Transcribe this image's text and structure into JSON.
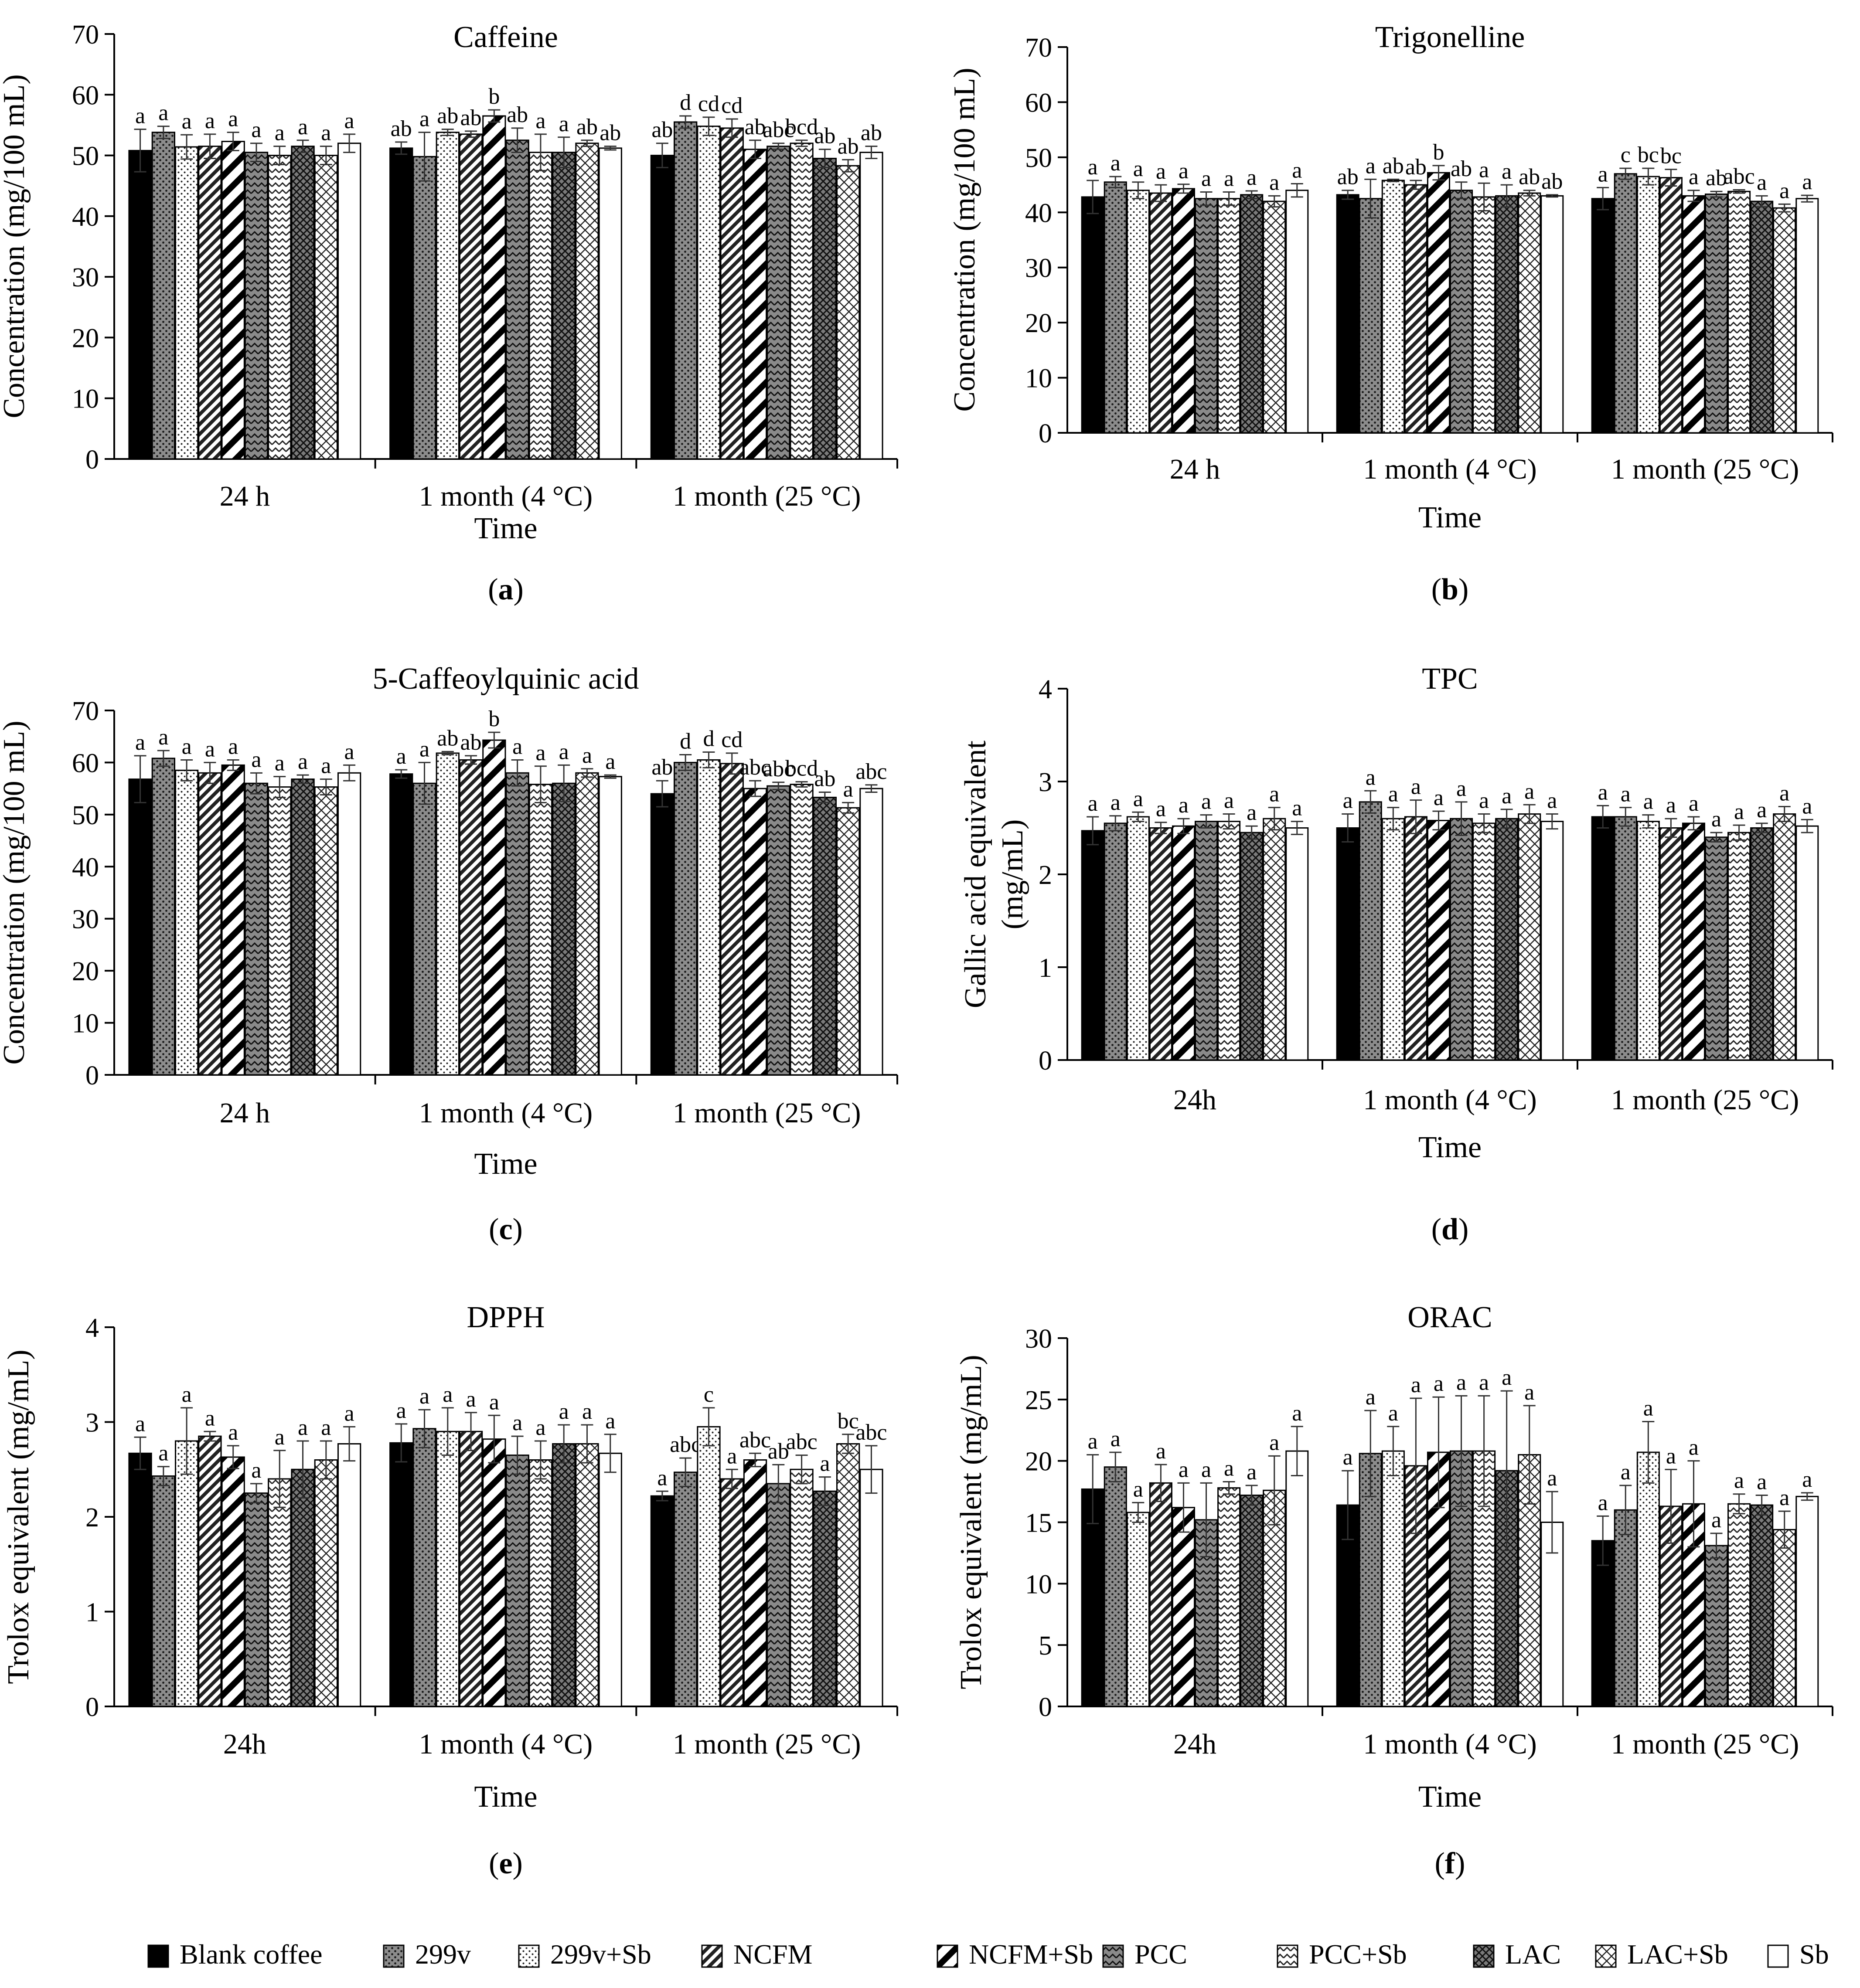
{
  "time_axis_title": "Time",
  "series_names": [
    "Blank coffee",
    "299v",
    "299v+Sb",
    "NCFM",
    "NCFM+Sb",
    "PCC",
    "PCC+Sb",
    "LAC",
    "LAC+Sb",
    "Sb"
  ],
  "legend": {
    "position": "bottom",
    "items": [
      {
        "label": "Blank coffee",
        "pattern": "solid-black"
      },
      {
        "label": "299v",
        "pattern": "dotted-gray"
      },
      {
        "label": "299v+Sb",
        "pattern": "dotted-white"
      },
      {
        "label": "NCFM",
        "pattern": "dense-diagonal-stripes"
      },
      {
        "label": "NCFM+Sb",
        "pattern": "wide-diagonal-stripes"
      },
      {
        "label": "PCC",
        "pattern": "zigzag-gray"
      },
      {
        "label": "PCC+Sb",
        "pattern": "zigzag-white"
      },
      {
        "label": "LAC",
        "pattern": "crosshatch-gray"
      },
      {
        "label": "LAC+Sb",
        "pattern": "crosshatch-white"
      },
      {
        "label": "Sb",
        "pattern": "white"
      }
    ]
  },
  "colors": {
    "axis": "#000000",
    "bar_outline": "#000000",
    "dark_fill": "#808080",
    "black_fill": "#000000"
  },
  "chart_data": [
    {
      "type": "bar",
      "title": "Caffeine",
      "panel_label": "(a)",
      "ylabel": "Concentration (mg/100 mL)",
      "xlabel": "Time",
      "ylim": [
        0,
        70
      ],
      "yticks": [
        0,
        10,
        20,
        30,
        40,
        50,
        60,
        70
      ],
      "categories": [
        "24 h",
        "1 month (4 °C)",
        "1 month (25 °C)"
      ],
      "values": [
        [
          50.8,
          53.8,
          51.4,
          51.5,
          52.3,
          50.5,
          50.0,
          51.5,
          50.0,
          52.0
        ],
        [
          51.2,
          49.8,
          53.8,
          53.5,
          56.5,
          52.5,
          50.5,
          50.5,
          52.0,
          51.2
        ],
        [
          50.0,
          55.5,
          54.8,
          54.5,
          51.0,
          51.5,
          52.0,
          49.5,
          48.3,
          50.5
        ]
      ],
      "errors": [
        [
          3.5,
          1.0,
          2.0,
          2.0,
          1.5,
          1.5,
          1.5,
          1.0,
          1.5,
          1.5
        ],
        [
          1.0,
          4.0,
          0.5,
          0.5,
          1.0,
          2.0,
          3.0,
          2.5,
          0.5,
          0.3
        ],
        [
          2.0,
          1.0,
          1.5,
          1.5,
          1.5,
          0.5,
          0.5,
          1.5,
          1.0,
          1.0
        ]
      ],
      "labels": [
        [
          "a",
          "a",
          "a",
          "a",
          "a",
          "a",
          "a",
          "a",
          "a",
          "a"
        ],
        [
          "ab",
          "a",
          "ab",
          "ab",
          "b",
          "ab",
          "a",
          "a",
          "ab",
          "ab"
        ],
        [
          "ab",
          "d",
          "cd",
          "cd",
          "ab",
          "abc",
          "bcd",
          "ab",
          "ab",
          "ab"
        ]
      ]
    },
    {
      "type": "bar",
      "title": "Trigonelline",
      "panel_label": "(b)",
      "ylabel": "Concentration (mg/100 mL)",
      "xlabel": "Time",
      "ylim": [
        0,
        70
      ],
      "yticks": [
        0,
        10,
        20,
        30,
        40,
        50,
        60,
        70
      ],
      "categories": [
        "24 h",
        "1 month (4 °C)",
        "1 month (25 °C)"
      ],
      "values": [
        [
          42.8,
          45.5,
          44.0,
          43.5,
          44.3,
          42.5,
          42.5,
          43.2,
          42.0,
          44.0
        ],
        [
          43.2,
          42.5,
          45.8,
          45.0,
          47.2,
          44.0,
          42.8,
          43.0,
          43.5,
          43.0
        ],
        [
          42.5,
          47.0,
          46.5,
          46.3,
          43.0,
          43.3,
          43.8,
          42.0,
          40.8,
          42.5
        ]
      ],
      "errors": [
        [
          3.0,
          1.0,
          1.5,
          1.5,
          0.8,
          1.2,
          1.2,
          0.7,
          1.0,
          1.2
        ],
        [
          0.8,
          3.5,
          0.2,
          0.8,
          1.3,
          1.5,
          2.5,
          2.0,
          0.5,
          0.2
        ],
        [
          2.0,
          1.0,
          1.5,
          1.5,
          1.0,
          0.5,
          0.3,
          1.0,
          0.7,
          0.6
        ]
      ],
      "labels": [
        [
          "a",
          "a",
          "a",
          "a",
          "a",
          "a",
          "a",
          "a",
          "a",
          "a"
        ],
        [
          "ab",
          "a",
          "ab",
          "ab",
          "b",
          "ab",
          "a",
          "a",
          "ab",
          "ab"
        ],
        [
          "a",
          "c",
          "bc",
          "bc",
          "a",
          "ab",
          "abc",
          "a",
          "a",
          "a"
        ]
      ]
    },
    {
      "type": "bar",
      "title": "5-Caffeoylquinic acid",
      "panel_label": "(c)",
      "ylabel": "Concentration (mg/100 mL)",
      "xlabel": "Time",
      "ylim": [
        0,
        70
      ],
      "yticks": [
        0,
        10,
        20,
        30,
        40,
        50,
        60,
        70
      ],
      "categories": [
        "24 h",
        "1 month (4 °C)",
        "1 month (25 °C)"
      ],
      "values": [
        [
          56.8,
          60.8,
          58.5,
          58.0,
          59.5,
          56.0,
          55.3,
          56.8,
          55.3,
          58.0
        ],
        [
          57.8,
          56.0,
          61.8,
          60.5,
          64.3,
          58.0,
          55.8,
          56.0,
          58.0,
          57.3
        ],
        [
          54.0,
          60.0,
          60.5,
          59.8,
          55.0,
          55.5,
          55.8,
          53.3,
          51.3,
          55.0
        ]
      ],
      "errors": [
        [
          4.5,
          1.5,
          2.0,
          2.0,
          1.0,
          2.0,
          2.0,
          0.8,
          1.5,
          1.5
        ],
        [
          0.8,
          4.0,
          0.3,
          0.8,
          1.5,
          2.5,
          3.5,
          3.5,
          0.8,
          0.3
        ],
        [
          2.5,
          1.5,
          1.5,
          2.0,
          1.5,
          0.7,
          0.5,
          1.0,
          1.0,
          0.7
        ]
      ],
      "labels": [
        [
          "a",
          "a",
          "a",
          "a",
          "a",
          "a",
          "a",
          "a",
          "a",
          "a"
        ],
        [
          "a",
          "a",
          "ab",
          "ab",
          "b",
          "a",
          "a",
          "a",
          "a",
          "a"
        ],
        [
          "ab",
          "d",
          "d",
          "cd",
          "abc",
          "abc",
          "bcd",
          "ab",
          "a",
          "abc"
        ]
      ]
    },
    {
      "type": "bar",
      "title": "TPC",
      "panel_label": "(d)",
      "ylabel": "Gallic acid equivalent (mg/mL)",
      "xlabel": "Time",
      "ylim": [
        0,
        4
      ],
      "yticks": [
        0,
        1,
        2,
        3,
        4
      ],
      "categories": [
        "24h",
        "1 month (4 °C)",
        "1 month (25 °C)"
      ],
      "values": [
        [
          2.47,
          2.55,
          2.62,
          2.5,
          2.52,
          2.57,
          2.57,
          2.45,
          2.6,
          2.5
        ],
        [
          2.5,
          2.78,
          2.6,
          2.62,
          2.58,
          2.6,
          2.55,
          2.6,
          2.65,
          2.57
        ],
        [
          2.62,
          2.62,
          2.57,
          2.5,
          2.55,
          2.4,
          2.45,
          2.5,
          2.65,
          2.52
        ]
      ],
      "errors": [
        [
          0.15,
          0.08,
          0.05,
          0.06,
          0.08,
          0.07,
          0.08,
          0.07,
          0.12,
          0.07
        ],
        [
          0.15,
          0.12,
          0.12,
          0.18,
          0.1,
          0.18,
          0.1,
          0.1,
          0.1,
          0.08
        ],
        [
          0.12,
          0.1,
          0.07,
          0.1,
          0.07,
          0.05,
          0.08,
          0.05,
          0.08,
          0.07
        ]
      ],
      "labels": [
        [
          "a",
          "a",
          "a",
          "a",
          "a",
          "a",
          "a",
          "a",
          "a",
          "a"
        ],
        [
          "a",
          "a",
          "a",
          "a",
          "a",
          "a",
          "a",
          "a",
          "a",
          "a"
        ],
        [
          "a",
          "a",
          "a",
          "a",
          "a",
          "a",
          "a",
          "a",
          "a",
          "a"
        ]
      ]
    },
    {
      "type": "bar",
      "title": "DPPH",
      "panel_label": "(e)",
      "ylabel": "Trolox equivalent (mg/mL)",
      "xlabel": "Time",
      "ylim": [
        0,
        4
      ],
      "yticks": [
        0,
        1,
        2,
        3,
        4
      ],
      "categories": [
        "24h",
        "1 month (4 °C)",
        "1 month (25 °C)"
      ],
      "values": [
        [
          2.67,
          2.43,
          2.8,
          2.85,
          2.63,
          2.25,
          2.4,
          2.5,
          2.6,
          2.77
        ],
        [
          2.78,
          2.93,
          2.9,
          2.9,
          2.82,
          2.65,
          2.6,
          2.77,
          2.77,
          2.67
        ],
        [
          2.22,
          2.47,
          2.95,
          2.4,
          2.6,
          2.35,
          2.5,
          2.27,
          2.77,
          2.5
        ]
      ],
      "errors": [
        [
          0.17,
          0.1,
          0.35,
          0.05,
          0.12,
          0.1,
          0.3,
          0.3,
          0.2,
          0.18
        ],
        [
          0.2,
          0.2,
          0.25,
          0.2,
          0.25,
          0.2,
          0.2,
          0.2,
          0.2,
          0.2
        ],
        [
          0.05,
          0.15,
          0.2,
          0.1,
          0.07,
          0.2,
          0.15,
          0.15,
          0.1,
          0.25
        ]
      ],
      "labels": [
        [
          "a",
          "a",
          "a",
          "a",
          "a",
          "a",
          "a",
          "a",
          "a",
          "a"
        ],
        [
          "a",
          "a",
          "a",
          "a",
          "a",
          "a",
          "a",
          "a",
          "a",
          "a"
        ],
        [
          "a",
          "abc",
          "c",
          "a",
          "abc",
          "ab",
          "abc",
          "a",
          "bc",
          "abc"
        ]
      ]
    },
    {
      "type": "bar",
      "title": "ORAC",
      "panel_label": "(f)",
      "ylabel": "Trolox equivalent (mg/mL)",
      "xlabel": "Time",
      "ylim": [
        0,
        30
      ],
      "yticks": [
        0,
        5,
        10,
        15,
        20,
        25,
        30
      ],
      "categories": [
        "24h",
        "1 month (4 °C)",
        "1 month (25 °C)"
      ],
      "values": [
        [
          17.7,
          19.5,
          15.8,
          18.2,
          16.2,
          15.2,
          17.8,
          17.2,
          17.6,
          20.8
        ],
        [
          16.4,
          20.6,
          20.8,
          19.6,
          20.7,
          20.8,
          20.8,
          19.2,
          20.5,
          15.0
        ],
        [
          13.5,
          16.0,
          20.7,
          16.3,
          16.5,
          13.1,
          16.5,
          16.4,
          14.4,
          17.1
        ]
      ],
      "errors": [
        [
          2.8,
          1.2,
          0.8,
          1.5,
          2.0,
          3.0,
          0.5,
          0.8,
          2.8,
          2.0
        ],
        [
          2.8,
          3.5,
          2.0,
          5.5,
          4.5,
          4.5,
          4.5,
          6.5,
          4.0,
          2.5
        ],
        [
          2.0,
          2.0,
          2.5,
          3.0,
          3.5,
          1.0,
          0.8,
          0.8,
          1.5,
          0.3
        ]
      ],
      "labels": [
        [
          "a",
          "a",
          "a",
          "a",
          "a",
          "a",
          "a",
          "a",
          "a",
          "a"
        ],
        [
          "a",
          "a",
          "a",
          "a",
          "a",
          "a",
          "a",
          "a",
          "a",
          "a"
        ],
        [
          "a",
          "a",
          "a",
          "a",
          "a",
          "a",
          "a",
          "a",
          "a",
          "a"
        ]
      ]
    }
  ]
}
